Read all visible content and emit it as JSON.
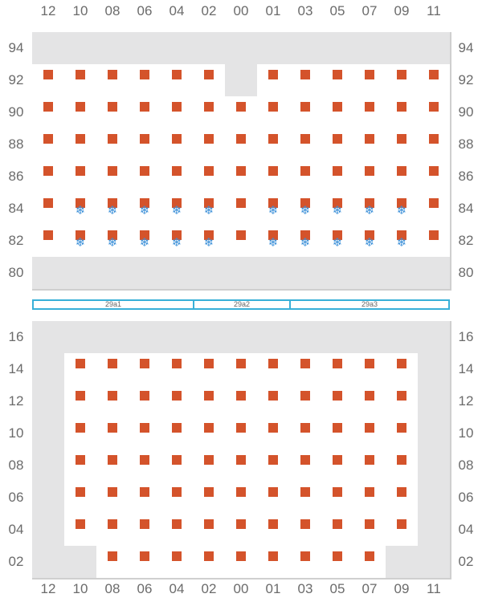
{
  "columns": [
    "12",
    "10",
    "08",
    "06",
    "04",
    "02",
    "00",
    "01",
    "03",
    "05",
    "07",
    "09",
    "11"
  ],
  "top_rows": [
    "94",
    "92",
    "90",
    "88",
    "86",
    "84",
    "82",
    "80"
  ],
  "bottom_rows": [
    "16",
    "14",
    "12",
    "10",
    "08",
    "06",
    "04",
    "02"
  ],
  "sections": [
    {
      "label": "29a1",
      "col_from": 0,
      "col_to": 4
    },
    {
      "label": "29a2",
      "col_from": 5,
      "col_to": 7
    },
    {
      "label": "29a3",
      "col_from": 8,
      "col_to": 12
    }
  ],
  "icons": {
    "marked": "marked-square-icon",
    "frozen": "snowflake-icon",
    "frozen_glyph": "❄"
  },
  "colors": {
    "marked": "#d4532b",
    "frozen": "#3a8fd8",
    "unavailable": "#e4e4e5",
    "section_border": "#38b0d8"
  },
  "top_grid": [
    "UUUUUUUUUUUUU",
    "MMMMMMUMMMMMM",
    "MMMMMMMMMMMMM",
    "MMMMMMMMMMMMM",
    "MMMMMMMMMMMMM",
    "MFFFFFMFFFFFM",
    "MFFFFFMFFFFFM",
    "UUUUUUUUUUUUU"
  ],
  "bottom_grid": [
    "UUUUUUUUUUUUU",
    "UMMMMMMMMMMMU",
    "UMMMMMMMMMMMU",
    "UMMMMMMMMMMMU",
    "UMMMMMMMMMMMU",
    "UMMMMMMMMMMMU",
    "UMMMMMMMMMMMU",
    "UUMMMMMMMMMUU"
  ]
}
